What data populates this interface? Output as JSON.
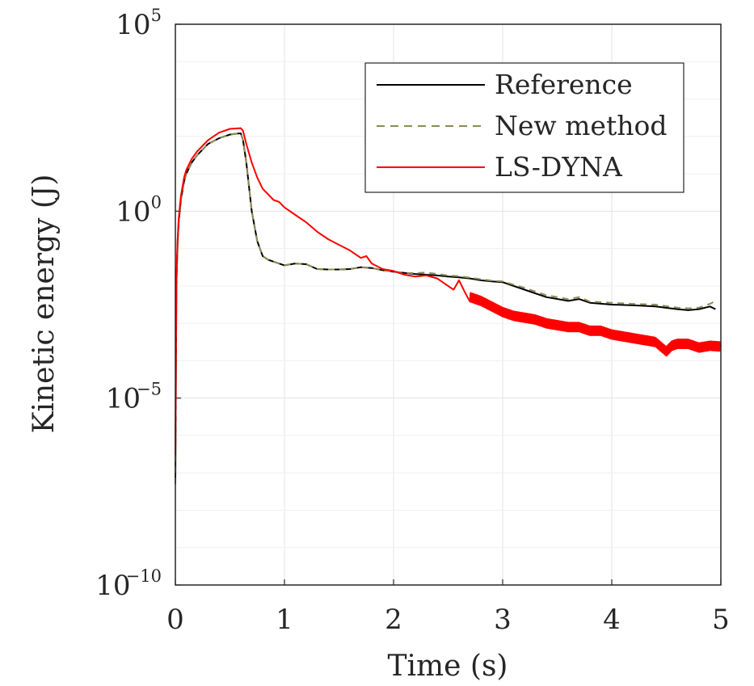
{
  "chart_data": {
    "type": "line",
    "xlabel": "Time (s)",
    "ylabel": "Kinetic energy (J)",
    "xlim": [
      0,
      5
    ],
    "ylim_log10": [
      -10,
      5
    ],
    "yscale": "log",
    "grid": true,
    "legend_position": "top-right",
    "x_ticks": [
      0,
      1,
      2,
      3,
      4,
      5
    ],
    "y_ticks": [
      {
        "base": "10",
        "exp": "5",
        "log10": 5
      },
      {
        "base": "10",
        "exp": "0",
        "log10": 0
      },
      {
        "base": "10",
        "exp": "−5",
        "log10": -5
      },
      {
        "base": "10",
        "exp": "−10",
        "log10": -10
      }
    ],
    "series": [
      {
        "name": "Reference",
        "color": "#000000",
        "dash": "solid",
        "x": [
          0.0,
          0.005,
          0.01,
          0.02,
          0.03,
          0.05,
          0.08,
          0.1,
          0.15,
          0.2,
          0.3,
          0.4,
          0.5,
          0.58,
          0.6,
          0.62,
          0.65,
          0.7,
          0.75,
          0.8,
          0.85,
          0.9,
          1.0,
          1.1,
          1.2,
          1.3,
          1.4,
          1.5,
          1.6,
          1.7,
          1.8,
          1.9,
          2.0,
          2.1,
          2.2,
          2.3,
          2.4,
          2.5,
          2.6,
          2.7,
          2.8,
          2.9,
          3.0,
          3.2,
          3.4,
          3.6,
          3.7,
          3.8,
          4.0,
          4.2,
          4.4,
          4.6,
          4.7,
          4.8,
          4.9,
          4.95
        ],
        "log10_y": [
          -7.3,
          -4.5,
          -2.0,
          -0.9,
          -0.3,
          0.3,
          0.8,
          1.0,
          1.3,
          1.5,
          1.8,
          1.95,
          2.05,
          2.08,
          2.08,
          1.9,
          1.3,
          0.0,
          -0.8,
          -1.2,
          -1.3,
          -1.35,
          -1.45,
          -1.4,
          -1.42,
          -1.55,
          -1.56,
          -1.56,
          -1.55,
          -1.5,
          -1.52,
          -1.58,
          -1.62,
          -1.65,
          -1.68,
          -1.7,
          -1.72,
          -1.75,
          -1.77,
          -1.8,
          -1.85,
          -1.88,
          -1.9,
          -2.1,
          -2.3,
          -2.4,
          -2.35,
          -2.45,
          -2.5,
          -2.52,
          -2.55,
          -2.62,
          -2.65,
          -2.62,
          -2.55,
          -2.62
        ]
      },
      {
        "name": "New method",
        "color": "#8c8c55",
        "dash": "dashed",
        "x": [
          0.0,
          0.005,
          0.01,
          0.02,
          0.03,
          0.05,
          0.08,
          0.1,
          0.15,
          0.2,
          0.3,
          0.4,
          0.5,
          0.58,
          0.6,
          0.62,
          0.65,
          0.7,
          0.75,
          0.8,
          0.85,
          0.9,
          1.0,
          1.1,
          1.2,
          1.3,
          1.4,
          1.5,
          1.6,
          1.7,
          1.8,
          1.9,
          2.0,
          2.1,
          2.2,
          2.3,
          2.4,
          2.5,
          2.6,
          2.7,
          2.8,
          2.9,
          3.0,
          3.2,
          3.4,
          3.6,
          3.7,
          3.8,
          4.0,
          4.2,
          4.4,
          4.6,
          4.7,
          4.8,
          4.9,
          4.95
        ],
        "log10_y": [
          -7.3,
          -4.5,
          -2.0,
          -0.9,
          -0.3,
          0.3,
          0.8,
          1.0,
          1.3,
          1.5,
          1.8,
          1.95,
          2.05,
          2.08,
          2.08,
          1.9,
          1.3,
          0.0,
          -0.8,
          -1.2,
          -1.3,
          -1.35,
          -1.45,
          -1.4,
          -1.42,
          -1.55,
          -1.56,
          -1.56,
          -1.55,
          -1.5,
          -1.52,
          -1.58,
          -1.62,
          -1.65,
          -1.66,
          -1.64,
          -1.68,
          -1.72,
          -1.74,
          -1.78,
          -1.82,
          -1.86,
          -1.88,
          -2.05,
          -2.25,
          -2.35,
          -2.3,
          -2.42,
          -2.45,
          -2.48,
          -2.5,
          -2.58,
          -2.6,
          -2.58,
          -2.48,
          -2.4
        ]
      },
      {
        "name": "LS-DYNA",
        "color": "#ff0000",
        "dash": "solid",
        "x": [
          0.0,
          0.005,
          0.01,
          0.02,
          0.03,
          0.05,
          0.08,
          0.1,
          0.15,
          0.2,
          0.3,
          0.4,
          0.5,
          0.6,
          0.62,
          0.65,
          0.7,
          0.75,
          0.8,
          0.85,
          0.9,
          0.95,
          1.0,
          1.1,
          1.2,
          1.3,
          1.4,
          1.5,
          1.6,
          1.7,
          1.75,
          1.8,
          1.9,
          2.0,
          2.1,
          2.2,
          2.3,
          2.4,
          2.5,
          2.55,
          2.6,
          2.65,
          2.7,
          2.8,
          2.9,
          3.0,
          3.1,
          3.2,
          3.3,
          3.4,
          3.5,
          3.6,
          3.7,
          3.8,
          3.9,
          4.0,
          4.1,
          4.2,
          4.3,
          4.4,
          4.5,
          4.55,
          4.6,
          4.7,
          4.8,
          4.9,
          5.0
        ],
        "log10_y": [
          -6.5,
          -3.8,
          -1.8,
          -0.8,
          -0.2,
          0.4,
          0.9,
          1.1,
          1.4,
          1.6,
          1.9,
          2.1,
          2.2,
          2.22,
          2.15,
          1.8,
          1.3,
          0.9,
          0.6,
          0.45,
          0.3,
          0.25,
          0.1,
          -0.1,
          -0.3,
          -0.55,
          -0.75,
          -0.9,
          -1.05,
          -1.25,
          -1.2,
          -1.4,
          -1.55,
          -1.6,
          -1.7,
          -1.75,
          -1.72,
          -1.8,
          -2.0,
          -2.1,
          -1.85,
          -2.15,
          -2.3,
          -2.4,
          -2.55,
          -2.7,
          -2.8,
          -2.85,
          -2.9,
          -3.0,
          -3.05,
          -3.1,
          -3.1,
          -3.2,
          -3.2,
          -3.3,
          -3.35,
          -3.4,
          -3.45,
          -3.5,
          -3.75,
          -3.6,
          -3.55,
          -3.55,
          -3.65,
          -3.6,
          -3.62
        ]
      }
    ]
  }
}
